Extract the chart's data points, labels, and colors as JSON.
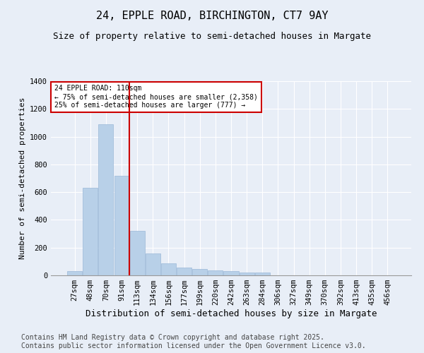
{
  "title1": "24, EPPLE ROAD, BIRCHINGTON, CT7 9AY",
  "title2": "Size of property relative to semi-detached houses in Margate",
  "xlabel": "Distribution of semi-detached houses by size in Margate",
  "ylabel": "Number of semi-detached properties",
  "categories": [
    "27sqm",
    "48sqm",
    "70sqm",
    "91sqm",
    "113sqm",
    "134sqm",
    "156sqm",
    "177sqm",
    "199sqm",
    "220sqm",
    "242sqm",
    "263sqm",
    "284sqm",
    "306sqm",
    "327sqm",
    "349sqm",
    "370sqm",
    "392sqm",
    "413sqm",
    "435sqm",
    "456sqm"
  ],
  "values": [
    30,
    630,
    1090,
    720,
    320,
    160,
    85,
    55,
    45,
    35,
    30,
    20,
    20,
    0,
    0,
    0,
    0,
    0,
    0,
    0,
    0
  ],
  "bar_color": "#b8d0e8",
  "bar_edge_color": "#9ab8d8",
  "annotation_text": "24 EPPLE ROAD: 110sqm\n← 75% of semi-detached houses are smaller (2,358)\n25% of semi-detached houses are larger (777) →",
  "annotation_box_color": "#ffffff",
  "annotation_box_edge": "#cc0000",
  "line_color": "#cc0000",
  "ylim": [
    0,
    1400
  ],
  "yticks": [
    0,
    200,
    400,
    600,
    800,
    1000,
    1200,
    1400
  ],
  "bg_color": "#e8eef7",
  "footer1": "Contains HM Land Registry data © Crown copyright and database right 2025.",
  "footer2": "Contains public sector information licensed under the Open Government Licence v3.0.",
  "title1_fontsize": 11,
  "title2_fontsize": 9,
  "xlabel_fontsize": 9,
  "ylabel_fontsize": 8,
  "tick_fontsize": 7.5,
  "footer_fontsize": 7
}
